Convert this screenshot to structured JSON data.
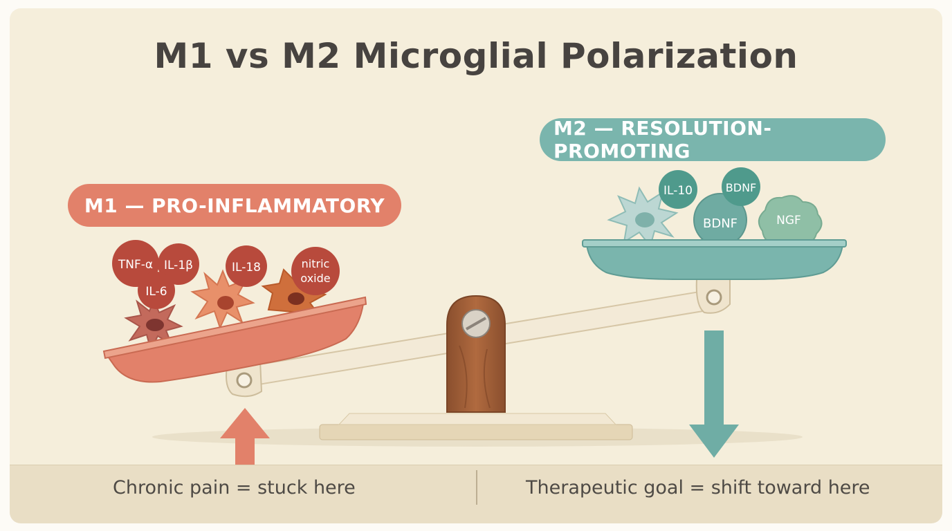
{
  "title": "M1 vs M2 Microglial Polarization",
  "m1": {
    "label": "M1 — PRO-INFLAMMATORY",
    "color": "#e2816a",
    "molecules": [
      "TNF-α",
      "IL-1β",
      "IL-6",
      "IL-18",
      "nitric",
      "oxide"
    ]
  },
  "m2": {
    "label": "M2 — RESOLUTION-PROMOTING",
    "color": "#7ab5ad",
    "molecules": [
      "IL-10",
      "BDNF",
      "BDNF",
      "NGF"
    ]
  },
  "footer": {
    "left": "Chronic pain = stuck here",
    "right": "Therapeutic goal = shift toward here"
  }
}
